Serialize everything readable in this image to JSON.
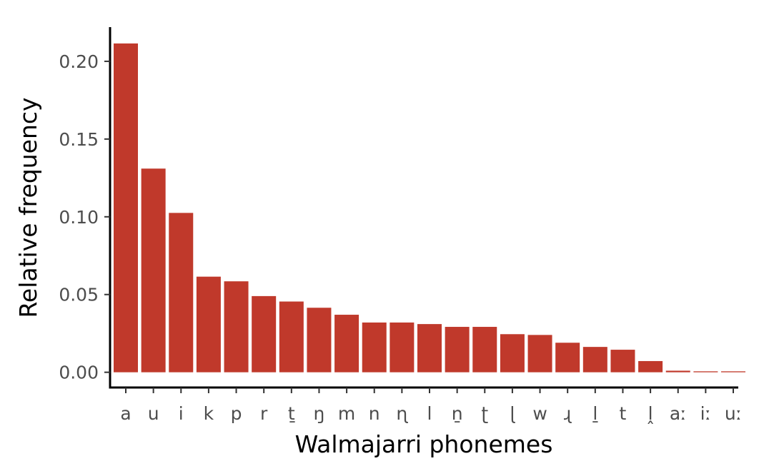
{
  "chart_data": {
    "type": "bar",
    "title": "",
    "xlabel": "Walmajarri phonemes",
    "ylabel": "Relative frequency",
    "categories": [
      "a",
      "u",
      "i",
      "k",
      "p",
      "r",
      "ṯ",
      "ŋ",
      "m",
      "n",
      "ɳ",
      "l",
      "ṉ",
      "ʈ",
      "ɭ",
      "w",
      "ɻ",
      "ḻ",
      "t",
      "ḽ",
      "aː",
      "iː",
      "uː"
    ],
    "values": [
      0.2115,
      0.131,
      0.1025,
      0.0615,
      0.0585,
      0.049,
      0.0455,
      0.0415,
      0.037,
      0.032,
      0.032,
      0.031,
      0.0292,
      0.0292,
      0.0245,
      0.024,
      0.019,
      0.0163,
      0.0145,
      0.0072,
      0.001,
      0.0006,
      0.0006
    ],
    "yticks": [
      "0.00",
      "0.05",
      "0.10",
      "0.15",
      "0.20"
    ],
    "ylim": [
      -0.0098,
      0.222
    ],
    "bar_color": "#C0392B",
    "grid": false,
    "legend": "none"
  }
}
